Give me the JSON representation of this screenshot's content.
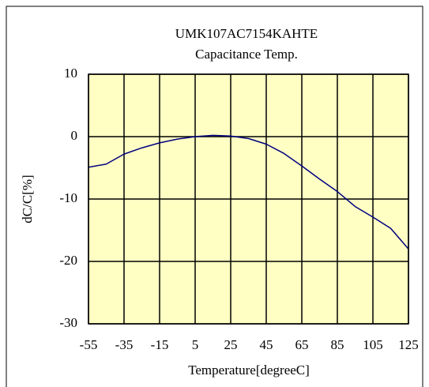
{
  "chart_data": {
    "type": "line",
    "title": "UMK107AC7154KAHTE",
    "subtitle": "Capacitance Temp.",
    "x_label": "Temperature[degreeC]",
    "y_label": "dC/C[%]",
    "x": [
      -55,
      -45,
      -35,
      -25,
      -15,
      -5,
      5,
      15,
      25,
      35,
      45,
      55,
      65,
      75,
      85,
      95,
      105,
      115,
      125
    ],
    "series": [
      {
        "name": "dC/C",
        "color": "#000080",
        "values": [
          -4.9,
          -4.4,
          -2.8,
          -1.8,
          -1.0,
          -0.4,
          0,
          0.2,
          0.1,
          -0.3,
          -1.2,
          -2.7,
          -4.7,
          -6.8,
          -8.8,
          -11.2,
          -12.9,
          -14.7,
          -18
        ]
      }
    ],
    "xlim": [
      -55,
      125
    ],
    "xticks": [
      -55,
      -35,
      -15,
      5,
      25,
      45,
      65,
      85,
      105,
      125
    ],
    "ylim": [
      -30,
      10
    ],
    "yticks": [
      -30,
      -20,
      -10,
      0,
      10
    ],
    "grid": true,
    "background": "#ffffc4"
  }
}
